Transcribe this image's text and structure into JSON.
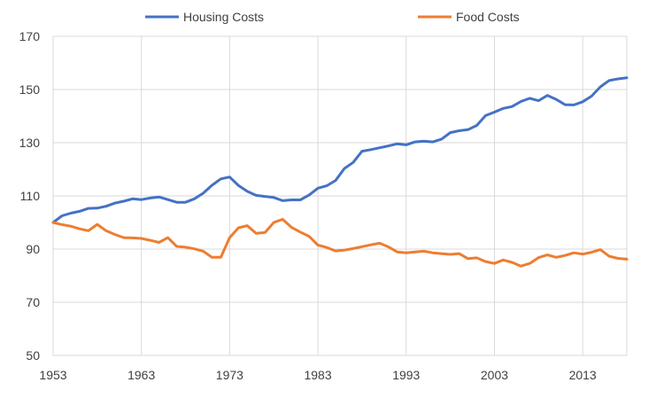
{
  "chart_data": {
    "type": "line",
    "title": "",
    "xlabel": "",
    "ylabel": "",
    "xlim": [
      1953,
      2018
    ],
    "ylim": [
      50,
      170
    ],
    "y_ticks": [
      50,
      70,
      90,
      110,
      130,
      150,
      170
    ],
    "x_ticks": [
      1953,
      1963,
      1973,
      1983,
      1993,
      2003,
      2013
    ],
    "grid": "both",
    "legend_position": "top",
    "x": [
      1953,
      1954,
      1955,
      1956,
      1957,
      1958,
      1959,
      1960,
      1961,
      1962,
      1963,
      1964,
      1965,
      1966,
      1967,
      1968,
      1969,
      1970,
      1971,
      1972,
      1973,
      1974,
      1975,
      1976,
      1977,
      1978,
      1979,
      1980,
      1981,
      1982,
      1983,
      1984,
      1985,
      1986,
      1987,
      1988,
      1989,
      1990,
      1991,
      1992,
      1993,
      1994,
      1995,
      1996,
      1997,
      1998,
      1999,
      2000,
      2001,
      2002,
      2003,
      2004,
      2005,
      2006,
      2007,
      2008,
      2009,
      2010,
      2011,
      2012,
      2013,
      2014,
      2015,
      2016,
      2017,
      2018
    ],
    "series": [
      {
        "name": "Housing Costs",
        "color": "#4472C4",
        "values": [
          100,
          102.5,
          103.5,
          104.2,
          105.3,
          105.4,
          106.1,
          107.3,
          108,
          108.9,
          108.6,
          109.2,
          109.6,
          108.6,
          107.6,
          107.6,
          108.9,
          111,
          114,
          116.4,
          117.1,
          113.9,
          111.7,
          110.2,
          109.8,
          109.4,
          108.2,
          108.5,
          108.5,
          110.3,
          112.9,
          113.8,
          115.8,
          120.3,
          122.6,
          126.8,
          127.4,
          128.1,
          128.8,
          129.6,
          129.2,
          130.3,
          130.6,
          130.3,
          131.3,
          133.8,
          134.5,
          134.9,
          136.5,
          140.2,
          141.5,
          142.9,
          143.6,
          145.5,
          146.7,
          145.8,
          147.8,
          146.3,
          144.3,
          144.2,
          145.4,
          147.5,
          151,
          153.4,
          154,
          154.4
        ]
      },
      {
        "name": "Food Costs",
        "color": "#ED7D31",
        "values": [
          100,
          99.2,
          98.6,
          97.6,
          96.9,
          99.3,
          96.9,
          95.5,
          94.3,
          94.2,
          94,
          93.3,
          92.5,
          94.3,
          91,
          90.7,
          90.1,
          89.2,
          86.9,
          86.9,
          94.3,
          98,
          98.8,
          95.9,
          96.2,
          100,
          101.2,
          98.2,
          96.4,
          94.8,
          91.5,
          90.6,
          89.3,
          89.6,
          90.2,
          90.9,
          91.6,
          92.2,
          90.8,
          88.9,
          88.6,
          88.9,
          89.2,
          88.6,
          88.3,
          88,
          88.3,
          86.4,
          86.7,
          85.3,
          84.6,
          85.9,
          85,
          83.6,
          84.6,
          86.8,
          87.8,
          86.9,
          87.6,
          88.6,
          88.1,
          88.8,
          89.8,
          87.3,
          86.5,
          86.2
        ]
      }
    ]
  }
}
